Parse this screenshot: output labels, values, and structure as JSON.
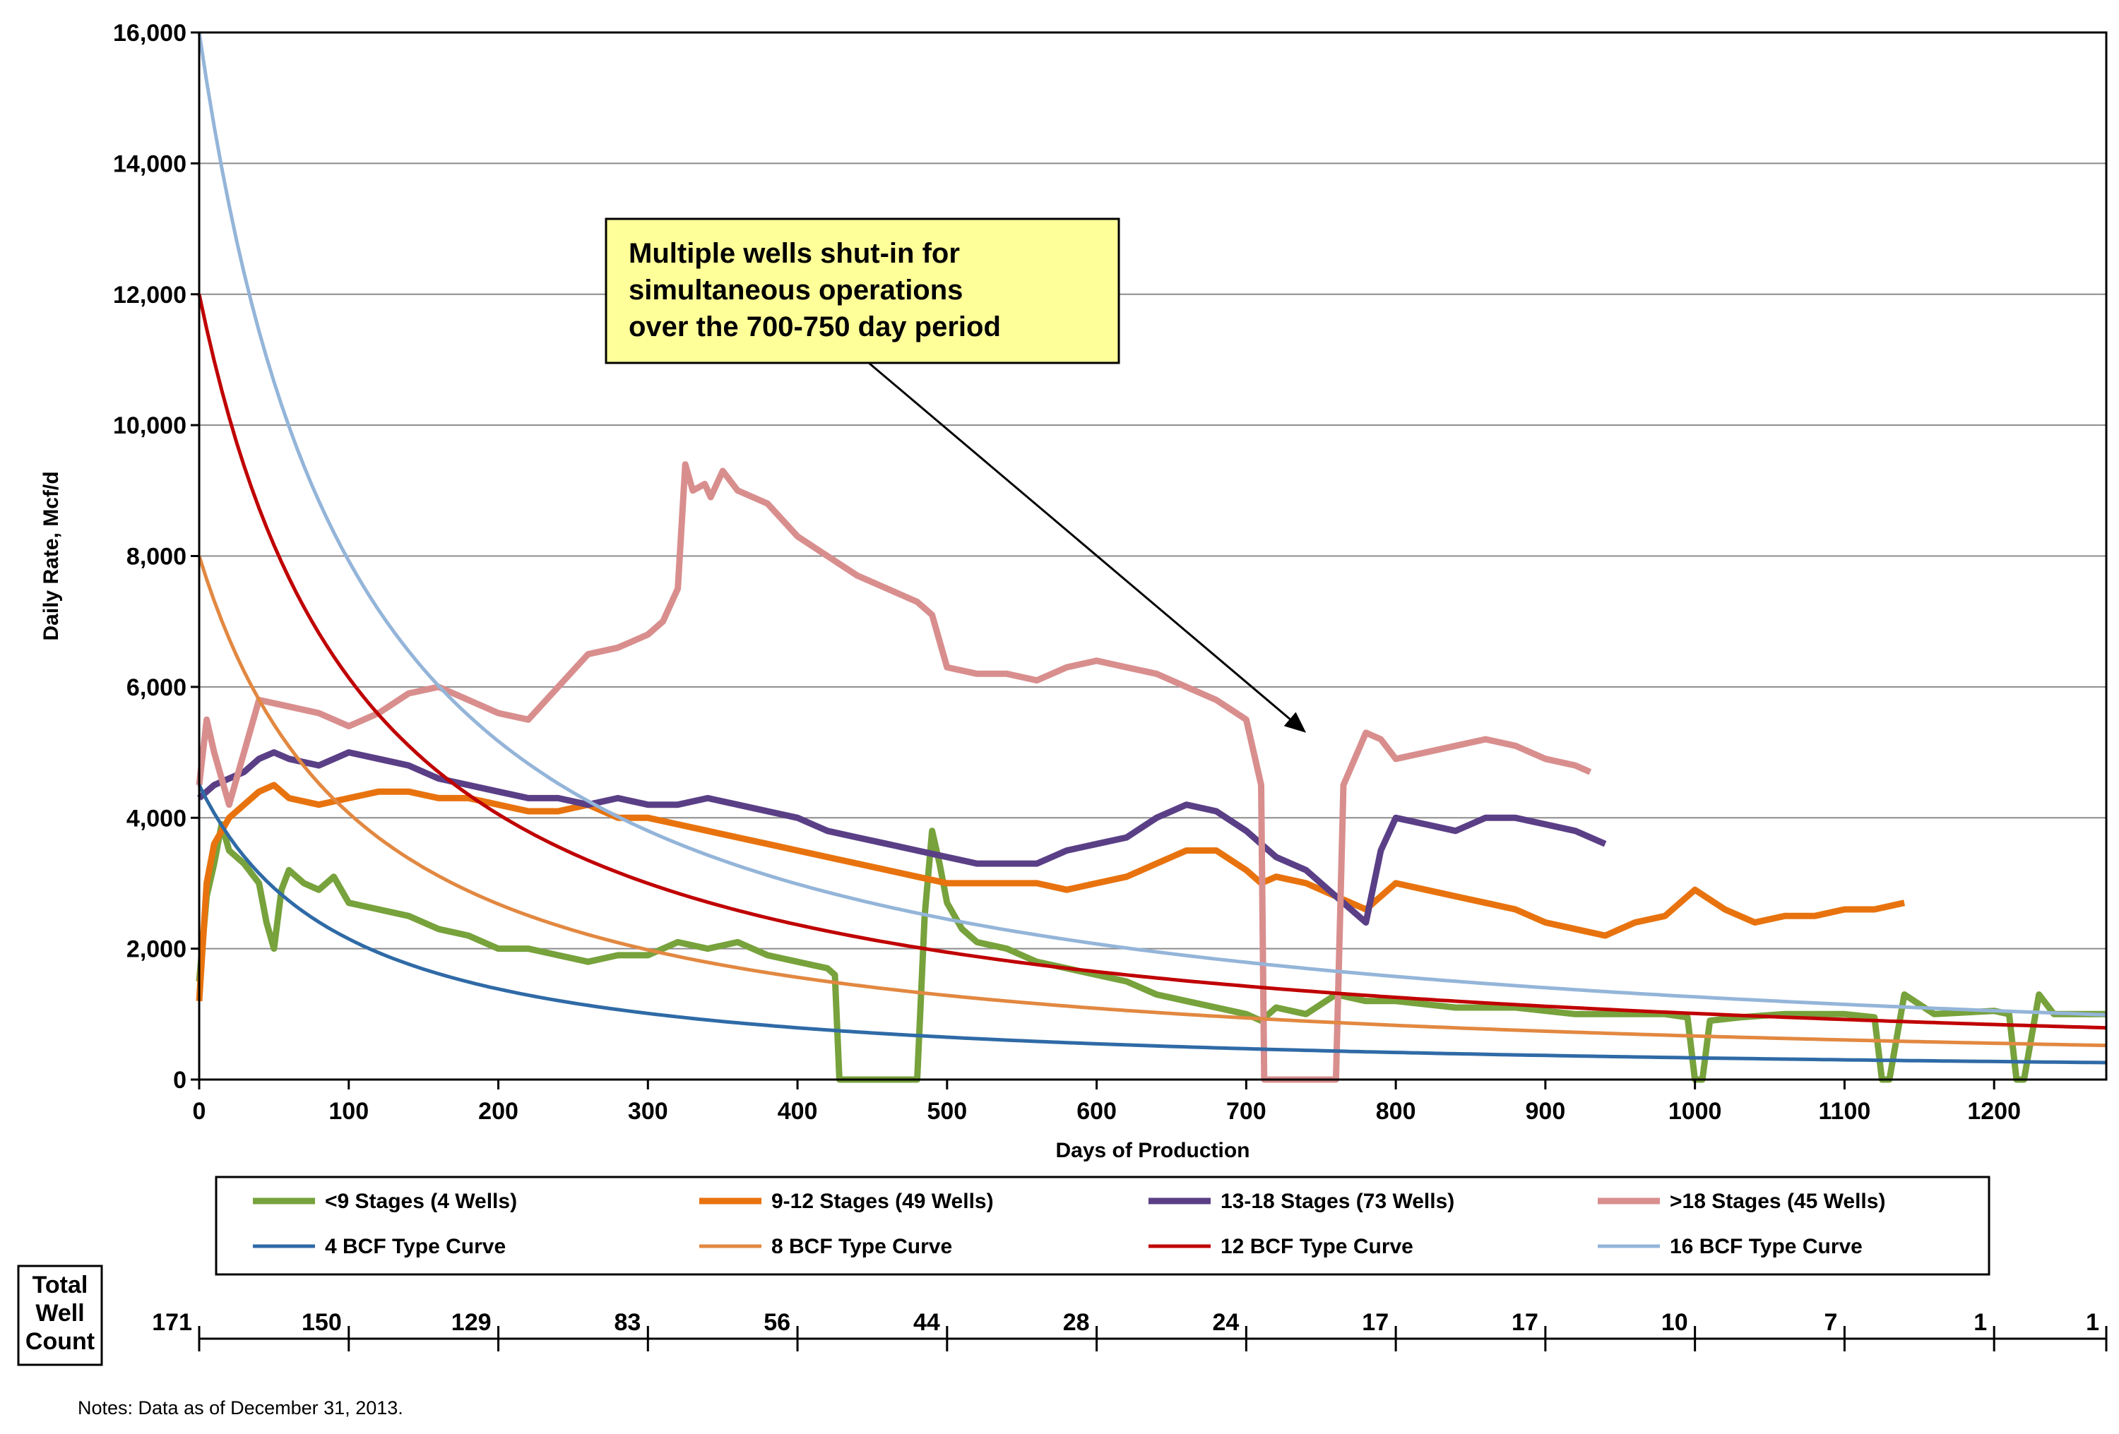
{
  "chart_data": {
    "type": "line",
    "title": "",
    "xlabel": "Days of Production",
    "ylabel": "Daily Rate, Mcf/d",
    "xlim": [
      0,
      1275
    ],
    "ylim": [
      0,
      16000
    ],
    "x_ticks": [
      0,
      100,
      200,
      300,
      400,
      500,
      600,
      700,
      800,
      900,
      1000,
      1100,
      1200
    ],
    "x_tick_labels": [
      "0",
      "100",
      "200",
      "300",
      "400",
      "500",
      "600",
      "700",
      "800",
      "900",
      "1000",
      "1100",
      "1200"
    ],
    "y_ticks": [
      0,
      2000,
      4000,
      6000,
      8000,
      10000,
      12000,
      14000,
      16000
    ],
    "y_tick_labels": [
      "0",
      "2,000",
      "4,000",
      "6,000",
      "8,000",
      "10,000",
      "12,000",
      "14,000",
      "16,000"
    ],
    "grid": "horizontal",
    "legend_position": "bottom",
    "annotation": {
      "lines": [
        "Multiple wells shut-in for",
        "simultaneous operations",
        "over the 700-750 day period"
      ],
      "arrow_target": [
        740,
        5300
      ],
      "box_color": "#ffff99"
    },
    "series": [
      {
        "name": "<9 Stages (4 Wells)",
        "color": "#77a23c",
        "style": "production",
        "x": [
          0,
          5,
          10,
          15,
          20,
          30,
          40,
          45,
          50,
          55,
          60,
          70,
          80,
          90,
          100,
          120,
          140,
          160,
          180,
          200,
          220,
          240,
          260,
          280,
          300,
          320,
          340,
          360,
          380,
          400,
          420,
          425,
          428,
          470,
          480,
          485,
          490,
          495,
          500,
          510,
          520,
          540,
          560,
          580,
          600,
          620,
          640,
          660,
          680,
          700,
          710,
          720,
          740,
          760,
          780,
          800,
          820,
          840,
          860,
          880,
          900,
          920,
          940,
          960,
          980,
          995,
          1000,
          1005,
          1010,
          1030,
          1060,
          1100,
          1120,
          1125,
          1130,
          1140,
          1160,
          1200,
          1210,
          1215,
          1220,
          1230,
          1240,
          1260,
          1275
        ],
        "y": [
          1500,
          2800,
          3300,
          3900,
          3500,
          3300,
          3000,
          2400,
          2000,
          2900,
          3200,
          3000,
          2900,
          3100,
          2700,
          2600,
          2500,
          2300,
          2200,
          2000,
          2000,
          1900,
          1800,
          1900,
          1900,
          2100,
          2000,
          2100,
          1900,
          1800,
          1700,
          1600,
          0,
          0,
          0,
          2500,
          3800,
          3300,
          2700,
          2300,
          2100,
          2000,
          1800,
          1700,
          1600,
          1500,
          1300,
          1200,
          1100,
          1000,
          900,
          1100,
          1000,
          1300,
          1200,
          1200,
          1150,
          1100,
          1100,
          1100,
          1050,
          1000,
          1000,
          1000,
          1000,
          950,
          0,
          0,
          900,
          950,
          1000,
          1000,
          950,
          0,
          0,
          1300,
          1000,
          1050,
          1000,
          0,
          0,
          1300,
          1000,
          1000,
          1000
        ]
      },
      {
        "name": "9-12 Stages (49 Wells)",
        "color": "#e8730e",
        "style": "production",
        "x": [
          0,
          5,
          10,
          20,
          30,
          40,
          50,
          60,
          80,
          100,
          120,
          140,
          160,
          180,
          200,
          220,
          240,
          260,
          280,
          300,
          320,
          340,
          360,
          380,
          400,
          420,
          440,
          460,
          480,
          500,
          520,
          540,
          560,
          580,
          600,
          620,
          640,
          660,
          680,
          700,
          710,
          720,
          740,
          760,
          780,
          800,
          820,
          840,
          860,
          880,
          900,
          920,
          940,
          960,
          980,
          1000,
          1020,
          1040,
          1060,
          1080,
          1100,
          1120,
          1140
        ],
        "y": [
          1200,
          3000,
          3600,
          4000,
          4200,
          4400,
          4500,
          4300,
          4200,
          4300,
          4400,
          4400,
          4300,
          4300,
          4200,
          4100,
          4100,
          4200,
          4000,
          4000,
          3900,
          3800,
          3700,
          3600,
          3500,
          3400,
          3300,
          3200,
          3100,
          3000,
          3000,
          3000,
          3000,
          2900,
          3000,
          3100,
          3300,
          3500,
          3500,
          3200,
          3000,
          3100,
          3000,
          2800,
          2600,
          3000,
          2900,
          2800,
          2700,
          2600,
          2400,
          2300,
          2200,
          2400,
          2500,
          2900,
          2600,
          2400,
          2500,
          2500,
          2600,
          2600,
          2700
        ]
      },
      {
        "name": "13-18 Stages (73 Wells)",
        "color": "#5a3f86",
        "style": "production",
        "x": [
          0,
          10,
          20,
          30,
          40,
          50,
          60,
          80,
          100,
          120,
          140,
          160,
          180,
          200,
          220,
          240,
          260,
          280,
          300,
          320,
          340,
          360,
          380,
          400,
          420,
          440,
          460,
          480,
          500,
          520,
          540,
          560,
          580,
          600,
          620,
          640,
          660,
          680,
          700,
          720,
          740,
          760,
          780,
          790,
          800,
          820,
          840,
          860,
          880,
          900,
          920,
          940
        ],
        "y": [
          4300,
          4500,
          4600,
          4700,
          4900,
          5000,
          4900,
          4800,
          5000,
          4900,
          4800,
          4600,
          4500,
          4400,
          4300,
          4300,
          4200,
          4300,
          4200,
          4200,
          4300,
          4200,
          4100,
          4000,
          3800,
          3700,
          3600,
          3500,
          3400,
          3300,
          3300,
          3300,
          3500,
          3600,
          3700,
          4000,
          4200,
          4100,
          3800,
          3400,
          3200,
          2800,
          2400,
          3500,
          4000,
          3900,
          3800,
          4000,
          4000,
          3900,
          3800,
          3600
        ]
      },
      {
        "name": ">18 Stages (45 Wells)",
        "color": "#d98e8e",
        "style": "production",
        "x": [
          0,
          5,
          10,
          20,
          30,
          40,
          60,
          80,
          100,
          120,
          140,
          160,
          180,
          200,
          220,
          240,
          260,
          280,
          300,
          310,
          320,
          325,
          330,
          338,
          342,
          350,
          360,
          380,
          400,
          420,
          440,
          460,
          480,
          490,
          500,
          520,
          540,
          560,
          580,
          600,
          620,
          640,
          660,
          680,
          700,
          710,
          712,
          715,
          760,
          765,
          780,
          790,
          800,
          820,
          840,
          860,
          880,
          900,
          920,
          930
        ],
        "y": [
          4500,
          5500,
          5000,
          4200,
          5000,
          5800,
          5700,
          5600,
          5400,
          5600,
          5900,
          6000,
          5800,
          5600,
          5500,
          6000,
          6500,
          6600,
          6800,
          7000,
          7500,
          9400,
          9000,
          9100,
          8900,
          9300,
          9000,
          8800,
          8300,
          8000,
          7700,
          7500,
          7300,
          7100,
          6300,
          6200,
          6200,
          6100,
          6300,
          6400,
          6300,
          6200,
          6000,
          5800,
          5500,
          4500,
          0,
          0,
          0,
          4500,
          5300,
          5200,
          4900,
          5000,
          5100,
          5200,
          5100,
          4900,
          4800,
          4700
        ]
      },
      {
        "name": "4 BCF Type Curve",
        "color": "#2f6aa6",
        "style": "curve",
        "qi": 4500,
        "b": 0.9,
        "di": 0.0105
      },
      {
        "name": "8 BCF Type Curve",
        "color": "#e28841",
        "style": "curve",
        "qi": 8000,
        "b": 0.9,
        "di": 0.0093
      },
      {
        "name": "12 BCF Type Curve",
        "color": "#c00000",
        "style": "curve",
        "qi": 12000,
        "b": 0.9,
        "di": 0.0092
      },
      {
        "name": "16 BCF Type Curve",
        "color": "#94b5d9",
        "style": "curve",
        "qi": 16000,
        "b": 0.9,
        "di": 0.0098
      }
    ],
    "well_count": {
      "label": [
        "Total",
        "Well",
        "Count"
      ],
      "values": [
        "171",
        "150",
        "129",
        "83",
        "56",
        "44",
        "28",
        "24",
        "17",
        "17",
        "10",
        "7",
        "1",
        "1"
      ]
    },
    "notes": "Notes:    Data as of December 31, 2013."
  }
}
